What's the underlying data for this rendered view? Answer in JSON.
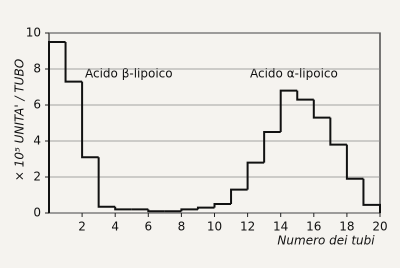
{
  "chart_data": {
    "type": "histogram",
    "bins": [
      0,
      1,
      2,
      3,
      4,
      5,
      6,
      7,
      8,
      9,
      10,
      11,
      12,
      13,
      14,
      15,
      16,
      17,
      18,
      19,
      20
    ],
    "values": [
      9.5,
      7.3,
      3.1,
      0.35,
      0.2,
      0.2,
      0.1,
      0.1,
      0.2,
      0.3,
      0.5,
      1.3,
      2.8,
      4.5,
      6.8,
      6.3,
      5.3,
      3.8,
      1.9,
      0.45
    ],
    "color": "#111111",
    "xlim": [
      0,
      20
    ],
    "xticks": [
      2,
      4,
      6,
      8,
      10,
      12,
      14,
      16,
      18,
      20
    ],
    "ylim": [
      0,
      10
    ],
    "yticks": [
      0,
      2,
      4,
      6,
      8,
      10
    ],
    "grid": true,
    "y_label": "× 10⁵ UNITA' / TUBO",
    "x_label": "Numero dei tubi",
    "annotations": [
      {
        "text": "Acido β-lipoico"
      },
      {
        "text": "Acido α-lipoico"
      }
    ]
  }
}
